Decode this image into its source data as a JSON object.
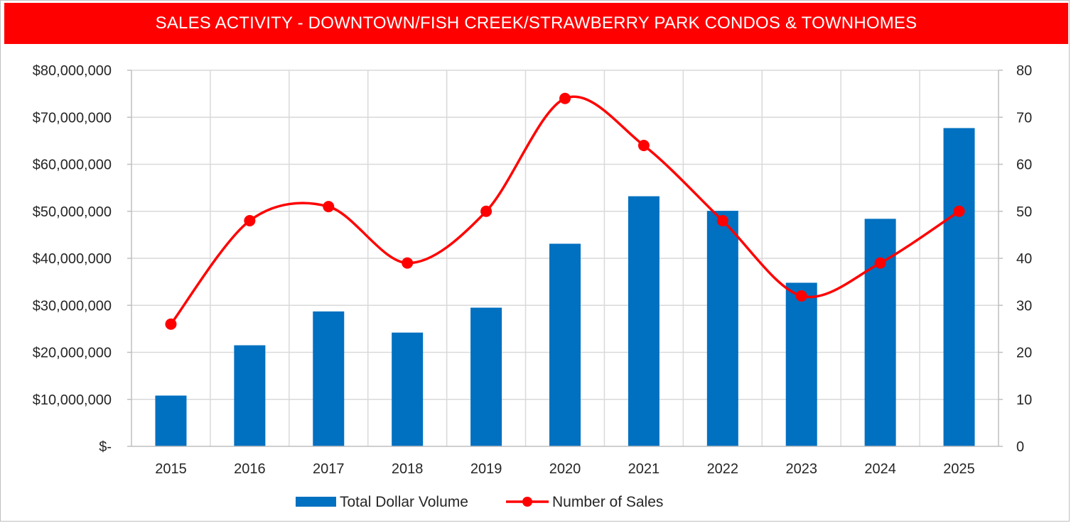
{
  "chart_data": {
    "type": "bar+line",
    "title": "SALES ACTIVITY - DOWNTOWN/FISH CREEK/STRAWBERRY PARK CONDOS & TOWNHOMES",
    "categories": [
      "2015",
      "2016",
      "2017",
      "2018",
      "2019",
      "2020",
      "2021",
      "2022",
      "2023",
      "2024",
      "2025"
    ],
    "series": [
      {
        "name": "Total Dollar Volume",
        "type": "bar",
        "axis": "left",
        "color": "#0070c0",
        "values": [
          10800000,
          21500000,
          28700000,
          24200000,
          29500000,
          43100000,
          53200000,
          50100000,
          34800000,
          48400000,
          67700000
        ]
      },
      {
        "name": "Number of Sales",
        "type": "line",
        "axis": "right",
        "color": "#ff0000",
        "values": [
          26,
          48,
          51,
          39,
          50,
          74,
          64,
          48,
          32,
          39,
          50
        ]
      }
    ],
    "left_axis": {
      "min": 0,
      "max": 80000000,
      "tick_labels": [
        "$-",
        "$10,000,000",
        "$20,000,000",
        "$30,000,000",
        "$40,000,000",
        "$50,000,000",
        "$60,000,000",
        "$70,000,000",
        "$80,000,000"
      ]
    },
    "right_axis": {
      "min": 0,
      "max": 80,
      "tick_labels": [
        "0",
        "10",
        "20",
        "30",
        "40",
        "50",
        "60",
        "70",
        "80"
      ]
    },
    "grid": true,
    "legend_position": "bottom"
  },
  "colors": {
    "title_bg": "#ff0000",
    "title_text": "#ffffff",
    "bar": "#0070c0",
    "line": "#ff0000",
    "grid": "#d9d9d9"
  }
}
